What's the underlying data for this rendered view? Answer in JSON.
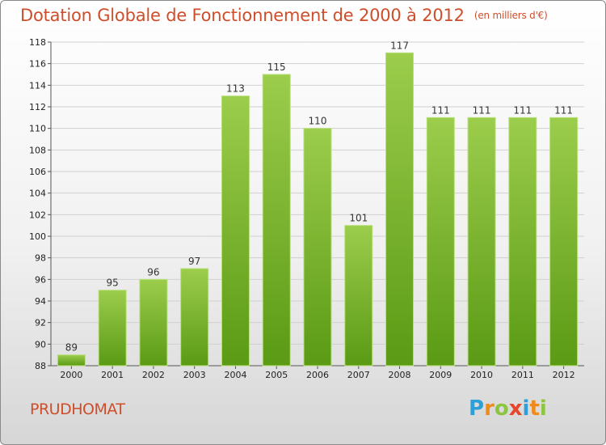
{
  "title": "Dotation Globale de Fonctionnement de 2000 à 2012",
  "subtitle": "(en milliers d'€)",
  "commune": "PRUDHOMAT",
  "logo": {
    "text": "Proxiti",
    "letters": [
      {
        "ch": "P",
        "color": "#2f9fd8"
      },
      {
        "ch": "r",
        "color": "#f08a1c"
      },
      {
        "ch": "o",
        "color": "#8cc63f"
      },
      {
        "ch": "x",
        "color": "#e8462a"
      },
      {
        "ch": "i",
        "color": "#2f9fd8"
      },
      {
        "ch": "t",
        "color": "#f08a1c"
      },
      {
        "ch": "i",
        "color": "#8cc63f"
      }
    ]
  },
  "colors": {
    "bar_top": "#9ccd4c",
    "bar_bottom": "#5a9a14",
    "bar_stroke": "#b8e07a",
    "title": "#ce4e2a",
    "grid": "#d0d0d0"
  },
  "chart_data": {
    "type": "bar",
    "title": "Dotation Globale de Fonctionnement de 2000 à 2012",
    "subtitle": "(en milliers d'€)",
    "categories": [
      "2000",
      "2001",
      "2002",
      "2003",
      "2004",
      "2005",
      "2006",
      "2007",
      "2008",
      "2009",
      "2010",
      "2011",
      "2012"
    ],
    "values": [
      89,
      95,
      96,
      97,
      113,
      115,
      110,
      101,
      117,
      111,
      111,
      111,
      111
    ],
    "data_labels": [
      "89",
      "95",
      "96",
      "97",
      "113",
      "115",
      "110",
      "101",
      "117",
      "111",
      "111",
      "111",
      "111"
    ],
    "ylim": [
      88,
      118
    ],
    "yticks": [
      "88",
      "90",
      "92",
      "94",
      "96",
      "98",
      "100",
      "102",
      "104",
      "106",
      "108",
      "110",
      "112",
      "114",
      "116",
      "118"
    ],
    "grid": true,
    "xlabel": "",
    "ylabel": ""
  }
}
